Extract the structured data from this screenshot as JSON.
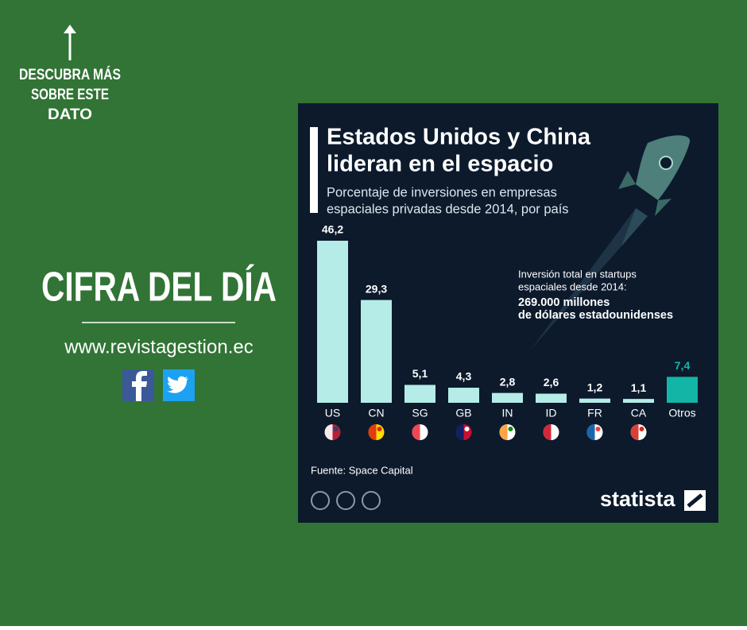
{
  "page": {
    "cta_lines": [
      "DESCUBRA MÁS",
      "SOBRE ESTE",
      "DATO"
    ],
    "headline": "CIFRA DEL DÍA",
    "website": "www.revistagestion.ec"
  },
  "chart_data": {
    "type": "bar",
    "title_lines": [
      "Estados Unidos y China",
      "lideran en el espacio"
    ],
    "subtitle_lines": [
      "Porcentaje de inversiones en empresas",
      "espaciales privadas desde 2014, por país"
    ],
    "categories": [
      "US",
      "CN",
      "SG",
      "GB",
      "IN",
      "ID",
      "FR",
      "CA",
      "Otros"
    ],
    "values": [
      46.2,
      29.3,
      5.1,
      4.3,
      2.8,
      2.6,
      1.2,
      1.1,
      7.4
    ],
    "value_labels": [
      "46,2",
      "29,3",
      "5,1",
      "4,3",
      "2,8",
      "2,6",
      "1,2",
      "1,1",
      "7,4"
    ],
    "color": "#b5ece8",
    "colors": [
      "#b5ece8",
      "#b5ece8",
      "#b5ece8",
      "#b5ece8",
      "#b5ece8",
      "#b5ece8",
      "#b5ece8",
      "#b5ece8",
      "#13b5a6"
    ],
    "annotation_lines": [
      "Inversión total en startups",
      "espaciales desde 2014:"
    ],
    "annotation_bold_lines": [
      "269.000 millones",
      "de dólares estadounidenses"
    ],
    "source": "Fuente: Space Capital",
    "brand": "statista"
  }
}
